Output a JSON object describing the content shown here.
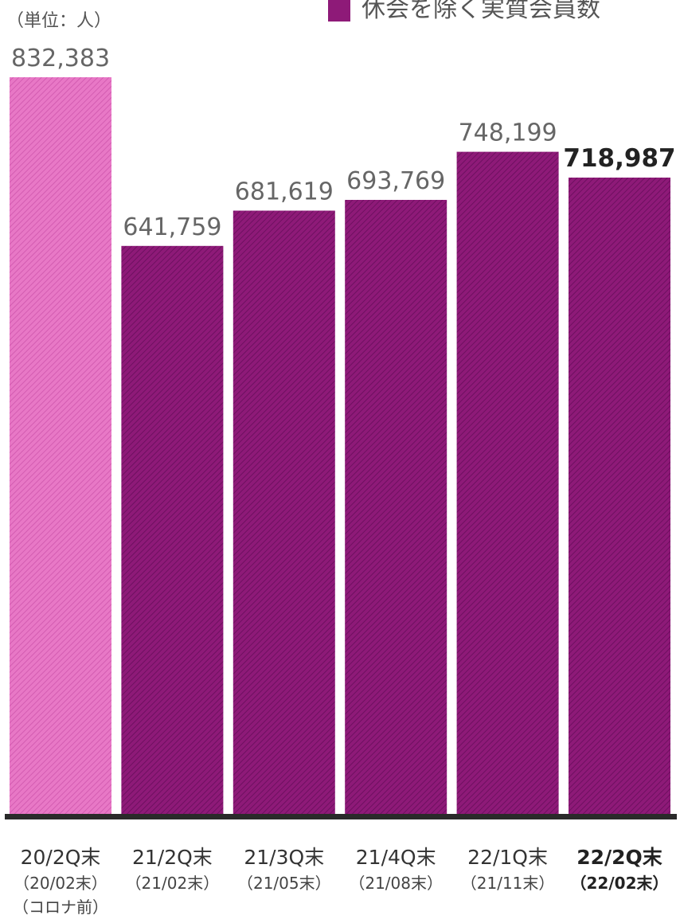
{
  "unit_label": "（単位：人）",
  "legend": {
    "label": "休会を除く実質会員数",
    "color": "#8e1a78"
  },
  "colors": {
    "bar_light": "#e878c6",
    "bar_main": "#8e1a78",
    "axis": "#2a2a2a"
  },
  "categories": [
    {
      "line1": "20/2Q末",
      "line2": "（20/02末）",
      "line3": "（コロナ前）",
      "highlight": false
    },
    {
      "line1": "21/2Q末",
      "line2": "（21/02末）",
      "highlight": false
    },
    {
      "line1": "21/3Q末",
      "line2": "（21/05末）",
      "highlight": false
    },
    {
      "line1": "21/4Q末",
      "line2": "（21/08末）",
      "highlight": false
    },
    {
      "line1": "22/1Q末",
      "line2": "（21/11末）",
      "highlight": false
    },
    {
      "line1": "22/2Q末",
      "line2": "（22/02末）",
      "highlight": true
    }
  ],
  "chart_data": {
    "type": "bar",
    "categories": [
      "20/2Q末",
      "21/2Q末",
      "21/3Q末",
      "21/4Q末",
      "22/1Q末",
      "22/2Q末"
    ],
    "values": [
      832383,
      641759,
      681619,
      693769,
      748199,
      718987
    ],
    "value_labels": [
      "832,383",
      "641,759",
      "681,619",
      "693,769",
      "748,199",
      "718,987"
    ],
    "series": [
      {
        "name": "休会を除く実質会員数",
        "values": [
          832383,
          641759,
          681619,
          693769,
          748199,
          718987
        ]
      }
    ],
    "ylim": [
      0,
      832383
    ],
    "grid": false,
    "legend_position": "top-right"
  }
}
